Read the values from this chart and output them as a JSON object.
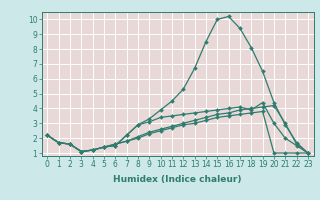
{
  "xlabel": "Humidex (Indice chaleur)",
  "background_color": "#cce8e8",
  "plot_bg_color": "#e8d8d8",
  "grid_color": "#ffffff",
  "line_color": "#2e7d6e",
  "xlim": [
    -0.5,
    23.5
  ],
  "ylim": [
    0.8,
    10.5
  ],
  "xticks": [
    0,
    1,
    2,
    3,
    4,
    5,
    6,
    7,
    8,
    9,
    10,
    11,
    12,
    13,
    14,
    15,
    16,
    17,
    18,
    19,
    20,
    21,
    22,
    23
  ],
  "yticks": [
    1,
    2,
    3,
    4,
    5,
    6,
    7,
    8,
    9,
    10
  ],
  "series": [
    [
      2.2,
      1.7,
      1.6,
      1.1,
      1.2,
      1.4,
      1.5,
      2.2,
      2.9,
      3.3,
      3.9,
      4.5,
      5.3,
      6.7,
      8.5,
      10.0,
      10.2,
      9.4,
      8.1,
      6.5,
      4.4,
      2.9,
      1.7,
      1.0
    ],
    [
      2.2,
      1.7,
      1.6,
      1.1,
      1.2,
      1.4,
      1.5,
      2.2,
      2.9,
      3.1,
      3.4,
      3.5,
      3.6,
      3.7,
      3.8,
      3.9,
      4.0,
      4.1,
      3.9,
      4.4,
      3.0,
      2.0,
      1.5,
      1.0
    ],
    [
      2.2,
      1.7,
      1.6,
      1.1,
      1.2,
      1.4,
      1.6,
      1.8,
      2.0,
      2.3,
      2.5,
      2.7,
      2.9,
      3.0,
      3.2,
      3.4,
      3.5,
      3.6,
      3.7,
      3.8,
      1.0,
      1.0,
      1.0,
      1.0
    ],
    [
      2.2,
      1.7,
      1.6,
      1.1,
      1.2,
      1.4,
      1.6,
      1.8,
      2.1,
      2.4,
      2.6,
      2.8,
      3.0,
      3.2,
      3.4,
      3.6,
      3.7,
      3.9,
      4.0,
      4.1,
      4.2,
      3.0,
      1.6,
      1.0
    ]
  ],
  "tick_fontsize": 5.5,
  "xlabel_fontsize": 6.5,
  "linewidth": 0.9,
  "markersize": 2.0
}
